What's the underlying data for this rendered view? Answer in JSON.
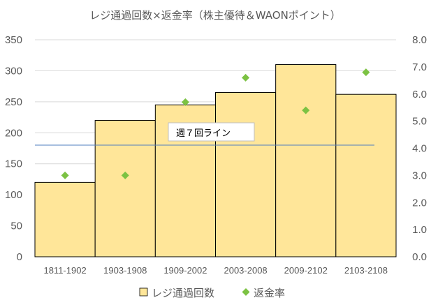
{
  "chart_data": {
    "type": "bar",
    "title": "レジ通過回数×返金率（株主優待＆WAONポイント）",
    "categories": [
      "1811-1902",
      "1903-1908",
      "1909-2002",
      "2003-2008",
      "2009-2102",
      "2103-2108"
    ],
    "series": [
      {
        "name": "レジ通過回数",
        "type": "bar",
        "axis": "left",
        "color": "#FFE699",
        "values": [
          120,
          220,
          245,
          265,
          310,
          262
        ]
      },
      {
        "name": "返金率",
        "type": "scatter",
        "axis": "right",
        "color": "#7CC243",
        "values": [
          3.0,
          3.0,
          5.7,
          6.6,
          5.4,
          6.8
        ]
      }
    ],
    "left_axis": {
      "min": 0,
      "max": 350,
      "ticks": [
        "0",
        "50",
        "100",
        "150",
        "200",
        "250",
        "300",
        "350"
      ]
    },
    "right_axis": {
      "min": 0,
      "max": 8,
      "ticks": [
        "0.0",
        "1.0",
        "2.0",
        "3.0",
        "4.0",
        "5.0",
        "6.0",
        "7.0",
        "8.0"
      ]
    },
    "reference_line": {
      "label": "週７回ライン",
      "value": 180,
      "axis": "left",
      "color": "#4F7FBF"
    },
    "grid": true,
    "legend_position": "bottom"
  }
}
